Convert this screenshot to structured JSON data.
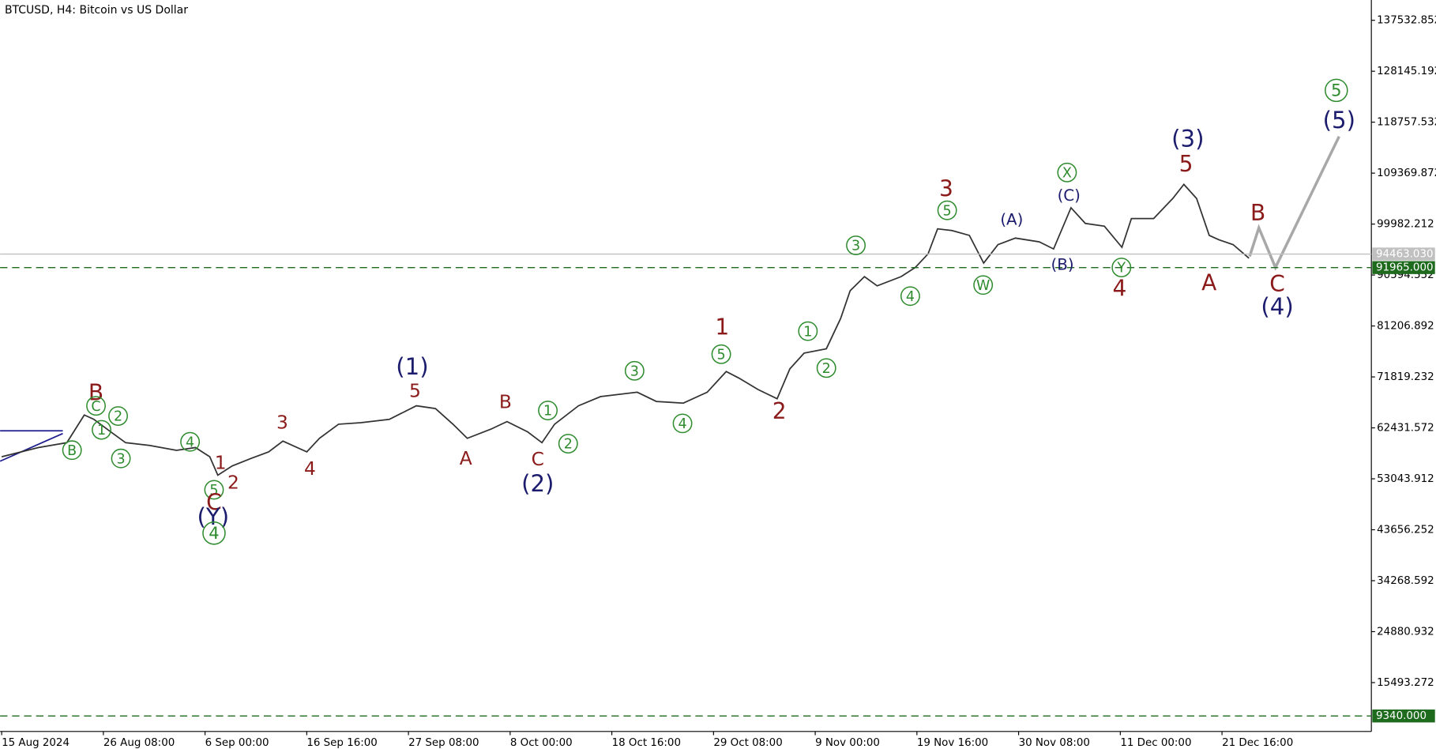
{
  "chart_data": {
    "type": "line",
    "title": "BTCUSD, H4:  Bitcoin vs US Dollar",
    "xlim": [
      -1,
      862
    ],
    "ylim": [
      6486,
      141272
    ],
    "xticks": [
      {
        "value": 0,
        "label": "15 Aug 2024"
      },
      {
        "value": 64,
        "label": "26 Aug 08:00"
      },
      {
        "value": 128,
        "label": "6 Sep 00:00"
      },
      {
        "value": 192,
        "label": "16 Sep 16:00"
      },
      {
        "value": 256,
        "label": "27 Sep 08:00"
      },
      {
        "value": 320,
        "label": "8 Oct 00:00"
      },
      {
        "value": 384,
        "label": "18 Oct 16:00"
      },
      {
        "value": 448,
        "label": "29 Oct 08:00"
      },
      {
        "value": 512,
        "label": "9 Nov 00:00"
      },
      {
        "value": 576,
        "label": "19 Nov 16:00"
      },
      {
        "value": 640,
        "label": "30 Nov 08:00"
      },
      {
        "value": 704,
        "label": "11 Dec 00:00"
      },
      {
        "value": 768,
        "label": "21 Dec 16:00"
      }
    ],
    "yticks": [
      137532.852,
      128145.192,
      118757.532,
      109369.872,
      99982.212,
      90594.552,
      81206.892,
      71819.232,
      62431.572,
      53043.912,
      43656.252,
      34268.592,
      24880.932,
      15493.272
    ],
    "series": [
      {
        "color": "#333333",
        "x": [
          0,
          23,
          41,
          52,
          58,
          70,
          78,
          93,
          110,
          122,
          131,
          136,
          145,
          157,
          168,
          177,
          192,
          200,
          212,
          226,
          244,
          261,
          273,
          284,
          293,
          308,
          318,
          331,
          340,
          348,
          363,
          377,
          400,
          412,
          429,
          444,
          456,
          464,
          476,
          488,
          496,
          505,
          519,
          528,
          534,
          543,
          551,
          566,
          575,
          583,
          589,
          598,
          609,
          618,
          627,
          638,
          653,
          662,
          673,
          682,
          694,
          705,
          711,
          725,
          737,
          744,
          752,
          760,
          766,
          775,
          785
        ],
        "values": [
          57100,
          58800,
          59700,
          64800,
          64000,
          61400,
          59700,
          59200,
          58300,
          58800,
          57100,
          53700,
          55400,
          56800,
          58000,
          60000,
          58000,
          60500,
          63100,
          63400,
          64000,
          66500,
          66000,
          63100,
          60500,
          62200,
          63600,
          61700,
          59700,
          63100,
          66500,
          68200,
          69000,
          67300,
          67000,
          69000,
          72800,
          71600,
          69500,
          67800,
          73300,
          76200,
          77000,
          82600,
          87700,
          90300,
          88600,
          90300,
          92000,
          94500,
          99100,
          98800,
          97900,
          92800,
          96200,
          97400,
          96700,
          95400,
          103000,
          100100,
          99600,
          95700,
          101000,
          101000,
          104700,
          107300,
          104700,
          97900,
          97100,
          96200,
          93700
        ]
      }
    ],
    "price_lines": [
      {
        "value": 94463.03,
        "label": "94463.030",
        "color": "#c0c0c0",
        "style": "solid"
      },
      {
        "value": 91965,
        "label": "91965.000",
        "color": "#1e6b1e",
        "style": "dashed"
      },
      {
        "value": 9340,
        "label": "9340.000",
        "color": "#1e6b1e",
        "style": "dashed"
      }
    ],
    "annotations": [
      "B",
      "B",
      "C",
      "1",
      "2",
      "3",
      "4",
      "5",
      "C",
      "(Y)",
      "4",
      "1",
      "2",
      "3",
      "4",
      "(1)",
      "5",
      "A",
      "B",
      "C",
      "(2)",
      "1",
      "2",
      "3",
      "4",
      "5",
      "1",
      "2",
      "1",
      "2",
      "3",
      "4",
      "5",
      "3",
      "W",
      "(A)",
      "(B)",
      "(C)",
      "X",
      "Y",
      "4",
      "(3)",
      "5",
      "A",
      "B",
      "C",
      "(4)",
      "5",
      "(5)"
    ]
  }
}
